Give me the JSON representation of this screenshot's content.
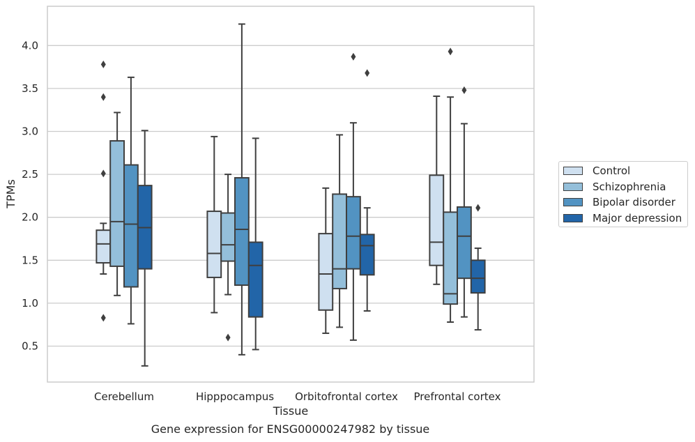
{
  "chart_data": {
    "type": "box",
    "title": "",
    "caption": "Gene expression for ENSG00000247982 by tissue",
    "xlabel": "Tissue",
    "ylabel": "TPMs",
    "ylim": [
      0.1,
      4.55
    ],
    "yticks": [
      0.5,
      1.0,
      1.5,
      2.0,
      2.5,
      3.0,
      3.5,
      4.0
    ],
    "ytick_labels": [
      "0.5",
      "1.0",
      "1.5",
      "2.0",
      "2.5",
      "3.0",
      "3.5",
      "4.0"
    ],
    "grid": true,
    "legend_position": "right",
    "categories": [
      "Cerebellum",
      "Hipppocampus",
      "Orbitofrontal cortex",
      "Prefrontal cortex"
    ],
    "series": [
      {
        "name": "Control",
        "color": "#cfe0f0",
        "boxes": [
          {
            "whislo": 1.34,
            "q1": 1.47,
            "med": 1.69,
            "q3": 1.85,
            "whishi": 1.93,
            "fliers": [
              3.78,
              3.4,
              2.51,
              0.83
            ]
          },
          {
            "whislo": 0.89,
            "q1": 1.3,
            "med": 1.58,
            "q3": 2.07,
            "whishi": 2.94,
            "fliers": []
          },
          {
            "whislo": 0.65,
            "q1": 0.92,
            "med": 1.34,
            "q3": 1.81,
            "whishi": 2.34,
            "fliers": []
          },
          {
            "whislo": 1.22,
            "q1": 1.44,
            "med": 1.71,
            "q3": 2.49,
            "whishi": 3.41,
            "fliers": []
          }
        ]
      },
      {
        "name": "Schizophrenia",
        "color": "#94bfda",
        "boxes": [
          {
            "whislo": 1.09,
            "q1": 1.43,
            "med": 1.95,
            "q3": 2.89,
            "whishi": 3.22,
            "fliers": []
          },
          {
            "whislo": 1.1,
            "q1": 1.49,
            "med": 1.68,
            "q3": 2.05,
            "whishi": 2.5,
            "fliers": [
              0.6
            ]
          },
          {
            "whislo": 0.72,
            "q1": 1.17,
            "med": 1.4,
            "q3": 2.27,
            "whishi": 2.96,
            "fliers": []
          },
          {
            "whislo": 0.78,
            "q1": 0.99,
            "med": 1.11,
            "q3": 2.06,
            "whishi": 3.4,
            "fliers": [
              3.93
            ]
          }
        ]
      },
      {
        "name": "Bipolar disorder",
        "color": "#5293c2",
        "boxes": [
          {
            "whislo": 0.76,
            "q1": 1.19,
            "med": 1.92,
            "q3": 2.61,
            "whishi": 3.63,
            "fliers": []
          },
          {
            "whislo": 0.4,
            "q1": 1.21,
            "med": 1.86,
            "q3": 2.46,
            "whishi": 4.25,
            "fliers": []
          },
          {
            "whislo": 0.57,
            "q1": 1.4,
            "med": 1.78,
            "q3": 2.24,
            "whishi": 3.1,
            "fliers": [
              3.87
            ]
          },
          {
            "whislo": 0.84,
            "q1": 1.29,
            "med": 1.78,
            "q3": 2.12,
            "whishi": 3.09,
            "fliers": [
              3.48
            ]
          }
        ]
      },
      {
        "name": "Major depression",
        "color": "#2265a8",
        "boxes": [
          {
            "whislo": 0.27,
            "q1": 1.4,
            "med": 1.88,
            "q3": 2.37,
            "whishi": 3.01,
            "fliers": []
          },
          {
            "whislo": 0.46,
            "q1": 0.84,
            "med": 1.44,
            "q3": 1.71,
            "whishi": 2.92,
            "fliers": []
          },
          {
            "whislo": 0.91,
            "q1": 1.33,
            "med": 1.67,
            "q3": 1.8,
            "whishi": 2.11,
            "fliers": [
              3.68
            ]
          },
          {
            "whislo": 0.69,
            "q1": 1.12,
            "med": 1.29,
            "q3": 1.5,
            "whishi": 1.64,
            "fliers": [
              2.11
            ]
          }
        ]
      }
    ]
  }
}
